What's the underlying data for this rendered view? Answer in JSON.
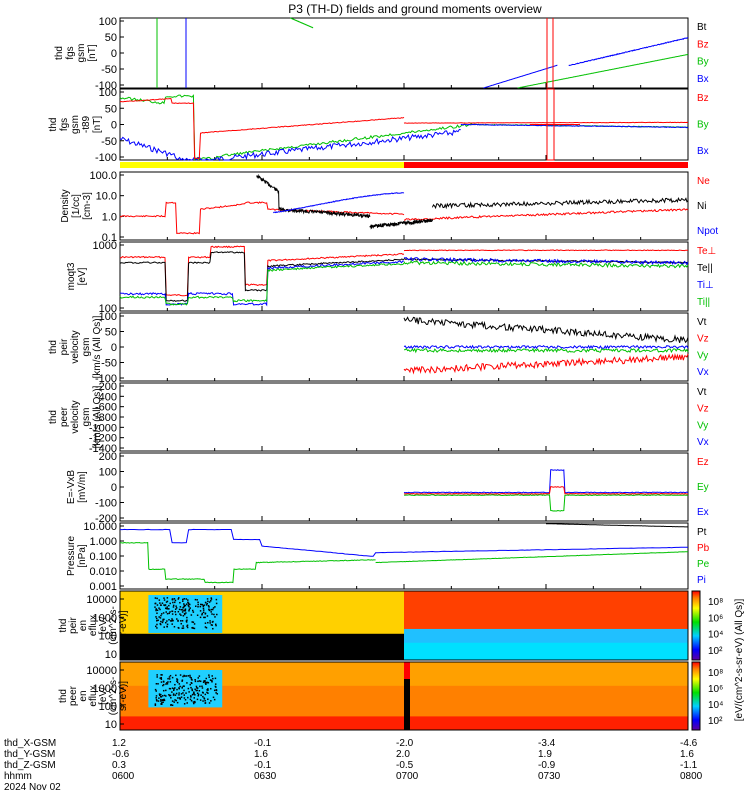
{
  "chart_data": {
    "type": "line",
    "title": "P3 (TH-D) fields and ground moments overview",
    "x_tick_labels": [
      {
        "series": "thd_X-GSM",
        "values": [
          "1.2",
          "-0.1",
          "-2.0",
          "-3.4",
          "-4.6"
        ]
      },
      {
        "series": "thd_Y-GSM",
        "values": [
          "-0.6",
          "1.6",
          "2.0",
          "1.9",
          "1.6"
        ]
      },
      {
        "series": "thd_Z-GSM",
        "values": [
          "0.3",
          "-0.1",
          "-0.5",
          "-0.9",
          "-1.1"
        ]
      },
      {
        "series": "hhmm",
        "values": [
          "0600",
          "0630",
          "0700",
          "0730",
          "0800"
        ]
      }
    ],
    "x_date": "2024 Nov 02",
    "status_bar": [
      {
        "color": "#ffff00",
        "from": "0600",
        "to": "0700"
      },
      {
        "color": "#ff0000",
        "from": "0700",
        "to": "0800"
      }
    ],
    "panels": [
      {
        "id": "p1",
        "ylabel": [
          "thd",
          "fgs",
          "gsm",
          "[nT]"
        ],
        "yticks": [
          "100",
          "50",
          "0",
          "-50",
          "-100"
        ],
        "legend": [
          {
            "label": "Bt",
            "color": "#000000"
          },
          {
            "label": "Bz",
            "color": "#ff0000"
          },
          {
            "label": "By",
            "color": "#00c000"
          },
          {
            "label": "Bx",
            "color": "#0000ff"
          }
        ]
      },
      {
        "id": "p2",
        "ylabel": [
          "thd",
          "fgs",
          "gsm",
          "-t89",
          "[nT]"
        ],
        "yticks": [
          "100",
          "50",
          "0",
          "-50",
          "-100"
        ],
        "legend": [
          {
            "label": "Bz",
            "color": "#ff0000"
          },
          {
            "label": "By",
            "color": "#00c000"
          },
          {
            "label": "Bx",
            "color": "#0000ff"
          }
        ]
      },
      {
        "id": "p3",
        "ylabel": [
          "Density",
          "[1/cc]",
          "[cm-3]"
        ],
        "yticks": [
          "100.0",
          "10.0",
          "1.0",
          "0.1"
        ],
        "legend": [
          {
            "label": "Ne",
            "color": "#ff0000"
          },
          {
            "label": "Ni",
            "color": "#000000"
          },
          {
            "label": "Npot",
            "color": "#0000ff"
          }
        ]
      },
      {
        "id": "p4",
        "ylabel": [
          "moqt3",
          "[eV]"
        ],
        "yticks": [
          "1000",
          "100"
        ],
        "legend": [
          {
            "label": "Te⊥",
            "color": "#ff0000"
          },
          {
            "label": "Te||",
            "color": "#000000"
          },
          {
            "label": "Ti⊥",
            "color": "#0000ff"
          },
          {
            "label": "Ti||",
            "color": "#00c000"
          }
        ]
      },
      {
        "id": "p5",
        "ylabel": [
          "thd",
          "peir",
          "velocity",
          "gsm",
          "[km/s (All Qs)]"
        ],
        "yticks": [
          "100",
          "50",
          "0",
          "-50",
          "-100"
        ],
        "legend": [
          {
            "label": "Vt",
            "color": "#000000"
          },
          {
            "label": "Vz",
            "color": "#ff0000"
          },
          {
            "label": "Vy",
            "color": "#00c000"
          },
          {
            "label": "Vx",
            "color": "#0000ff"
          }
        ]
      },
      {
        "id": "p6",
        "ylabel": [
          "thd",
          "peer",
          "velocity",
          "gsm",
          "[km/s (All Qs)]"
        ],
        "yticks": [
          "-200",
          "-400",
          "-600",
          "-800",
          "-1000",
          "-1200",
          "-1400"
        ],
        "legend": [
          {
            "label": "Vt",
            "color": "#000000"
          },
          {
            "label": "Vz",
            "color": "#ff0000"
          },
          {
            "label": "Vy",
            "color": "#00c000"
          },
          {
            "label": "Vx",
            "color": "#0000ff"
          }
        ]
      },
      {
        "id": "p7",
        "ylabel": [
          "E=-VxB",
          "[mV/m]"
        ],
        "yticks": [
          "200",
          "100",
          "0",
          "-100",
          "-200"
        ],
        "legend": [
          {
            "label": "Ez",
            "color": "#ff0000"
          },
          {
            "label": "Ey",
            "color": "#00c000"
          },
          {
            "label": "Ex",
            "color": "#0000ff"
          }
        ]
      },
      {
        "id": "p8",
        "ylabel": [
          "Pressure",
          "[nPa]"
        ],
        "yticks": [
          "10.000",
          "1.000",
          "0.100",
          "0.010",
          "0.001"
        ],
        "legend": [
          {
            "label": "Pt",
            "color": "#000000"
          },
          {
            "label": "Pb",
            "color": "#ff0000"
          },
          {
            "label": "Pe",
            "color": "#00c000"
          },
          {
            "label": "Pi",
            "color": "#0000ff"
          }
        ]
      },
      {
        "id": "p9",
        "ylabel": [
          "thd",
          "peir",
          "en",
          "eflux",
          "[eV/",
          "(cm^2-s-",
          "sr-eV)]"
        ],
        "yticks": [
          "10000",
          "1000",
          "100",
          "10"
        ]
      },
      {
        "id": "p10",
        "ylabel": [
          "thd",
          "peer",
          "en",
          "eflux",
          "[eV/",
          "(cm^2-s-",
          "sr-eV)]"
        ],
        "yticks": [
          "10000",
          "1000",
          "100",
          "10"
        ]
      }
    ],
    "colorbar": {
      "label": "[eV/(cm^2-s-sr-eV) (All Qs)]",
      "ticks_top": [
        "10^8",
        "10^6",
        "10^4",
        "10^2"
      ],
      "ticks_bottom": [
        "10^8",
        "10^6",
        "10^4",
        "10^2"
      ]
    }
  }
}
